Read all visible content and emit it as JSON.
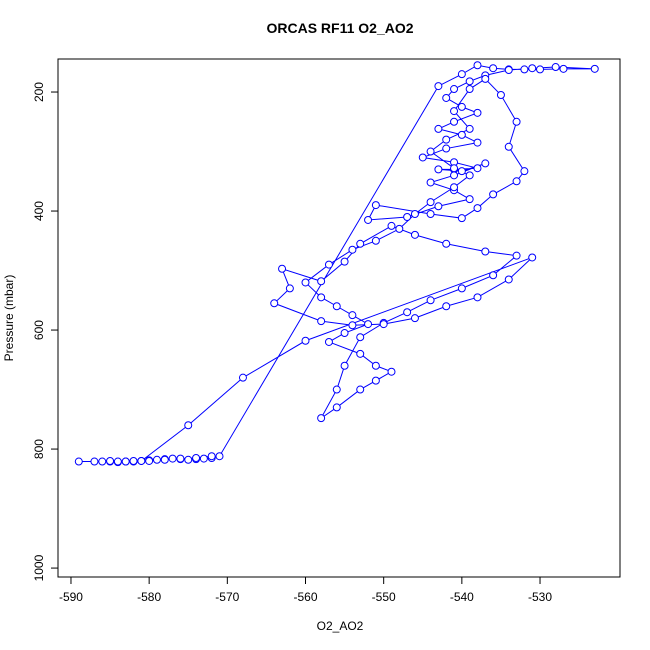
{
  "chart_data": {
    "type": "line",
    "title": "ORCAS RF11 O2_AO2",
    "xlabel": "O2_AO2",
    "ylabel": "Pressure (mbar)",
    "x": [
      -589,
      -587,
      -586,
      -585,
      -584,
      -583,
      -582,
      -581,
      -580,
      -579,
      -578,
      -577,
      -576,
      -575,
      -574,
      -573,
      -572,
      -571,
      -543,
      -540,
      -538,
      -536,
      -534,
      -532,
      -530,
      -527,
      -523,
      -528,
      -531,
      -534,
      -537,
      -539,
      -541,
      -542,
      -540,
      -538,
      -541,
      -543,
      -540,
      -538,
      -542,
      -545,
      -541,
      -538,
      -541,
      -543,
      -540,
      -537,
      -541,
      -544,
      -541,
      -539,
      -543,
      -547,
      -552,
      -551,
      -544,
      -540,
      -538,
      -536,
      -533,
      -532,
      -534,
      -533,
      -535,
      -537,
      -539,
      -541,
      -539,
      -542,
      -544,
      -541,
      -539,
      -541,
      -544,
      -546,
      -548,
      -551,
      -554,
      -557,
      -560,
      -558,
      -556,
      -554,
      -552,
      -555,
      -557,
      -553,
      -551,
      -549,
      -551,
      -553,
      -556,
      -558,
      -556,
      -555,
      -553,
      -550,
      -547,
      -544,
      -540,
      -536,
      -533,
      -537,
      -542,
      -546,
      -549,
      -553,
      -555,
      -558,
      -563,
      -562,
      -564,
      -558,
      -554,
      -550,
      -546,
      -542,
      -538,
      -534,
      -531,
      -560,
      -568,
      -575,
      -581,
      -583,
      -584,
      -585,
      -582,
      -580,
      -578,
      -576,
      -574,
      -572
    ],
    "series": [
      {
        "name": "O2_AO2",
        "color": "#0000ff",
        "values": [
          821,
          821,
          821,
          821,
          822,
          821,
          821,
          820,
          819,
          818,
          817,
          816,
          817,
          818,
          817,
          816,
          815,
          812,
          190,
          170,
          155,
          160,
          162,
          162,
          162,
          161,
          161,
          158,
          160,
          163,
          172,
          182,
          195,
          210,
          225,
          235,
          250,
          262,
          272,
          285,
          295,
          310,
          318,
          328,
          330,
          330,
          333,
          320,
          340,
          352,
          365,
          380,
          392,
          410,
          415,
          390,
          405,
          412,
          395,
          372,
          350,
          333,
          292,
          250,
          205,
          178,
          195,
          232,
          262,
          280,
          300,
          328,
          340,
          360,
          385,
          405,
          430,
          450,
          465,
          490,
          520,
          545,
          560,
          575,
          590,
          605,
          620,
          640,
          660,
          670,
          685,
          700,
          730,
          748,
          700,
          660,
          612,
          588,
          570,
          550,
          530,
          508,
          475,
          468,
          455,
          440,
          425,
          455,
          485,
          518,
          497,
          530,
          555,
          585,
          592,
          590,
          580,
          560,
          545,
          515,
          478,
          618,
          680,
          760,
          820,
          821,
          821,
          820,
          820,
          820,
          818,
          816,
          815,
          812
        ]
      }
    ],
    "xlim": [
      -591.66,
      -519.77
    ],
    "ylim": [
      144.5,
      1015
    ],
    "y_reversed": true,
    "xticks": [
      -590,
      -580,
      -570,
      -560,
      -550,
      -540,
      -530
    ],
    "yticks": [
      200,
      400,
      600,
      800,
      1000
    ]
  }
}
